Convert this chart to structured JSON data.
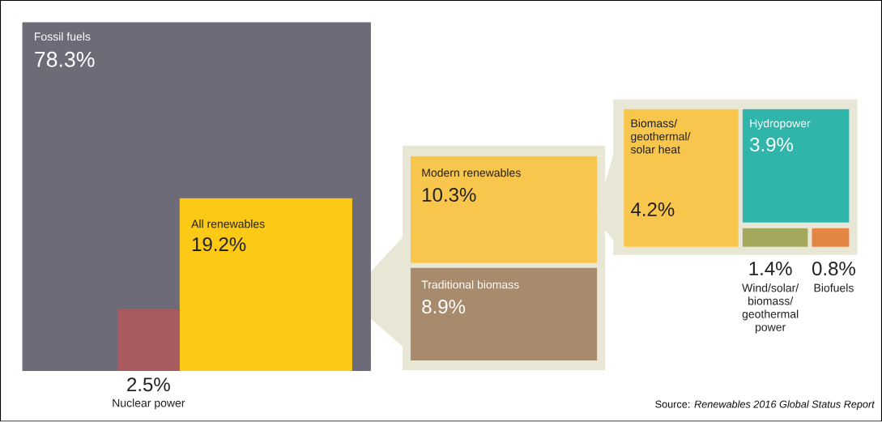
{
  "chart_data": {
    "type": "other",
    "categories": [
      "Fossil fuels",
      "All renewables",
      "Nuclear power",
      "Modern renewables",
      "Traditional biomass",
      "Biomass/ geothermal/ solar heat",
      "Hydropower",
      "Wind/solar/ biomass/ geothermal power",
      "Biofuels"
    ],
    "values": [
      78.3,
      19.2,
      2.5,
      10.3,
      8.9,
      4.2,
      3.9,
      1.4,
      0.8
    ],
    "value_labels": [
      "78.3%",
      "19.2%",
      "2.5%",
      "10.3%",
      "8.9%",
      "4.2%",
      "3.9%",
      "1.4%",
      "0.8%"
    ],
    "colors": [
      "#6e6b78",
      "#fcc917",
      "#a85a5f",
      "#f8c64c",
      "#a88b6c",
      "#f8c64c",
      "#2fb5a9",
      "#a3a85c",
      "#e38543"
    ],
    "annotations": [
      "Source: *Renewables 2016 Global Status Report*"
    ]
  }
}
